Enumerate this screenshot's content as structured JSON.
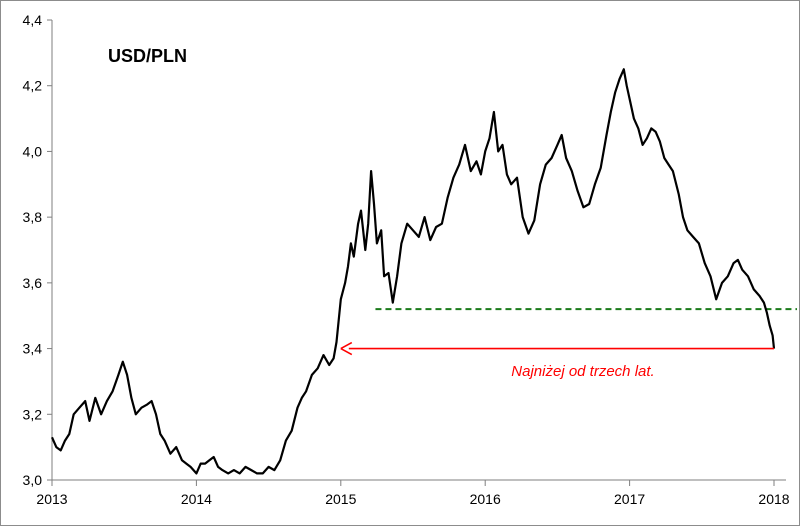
{
  "chart_data": {
    "type": "line",
    "title": "USD/PLN",
    "xlabel": "",
    "ylabel": "",
    "xlim": [
      2013.0,
      2018.0
    ],
    "ylim": [
      3.0,
      4.4
    ],
    "x_ticks": [
      2013,
      2014,
      2015,
      2016,
      2017,
      2018
    ],
    "x_tick_labels": [
      "2013",
      "2014",
      "2015",
      "2016",
      "2017",
      "2018"
    ],
    "y_ticks": [
      3.0,
      3.2,
      3.4,
      3.6,
      3.8,
      4.0,
      4.2,
      4.4
    ],
    "y_tick_labels": [
      "3,0",
      "3,2",
      "3,4",
      "3,6",
      "3,8",
      "4,0",
      "4,2",
      "4,4"
    ],
    "grid": false,
    "legend": "none",
    "series": [
      {
        "color": "#000000",
        "points": [
          [
            2013.0,
            3.13
          ],
          [
            2013.03,
            3.1
          ],
          [
            2013.06,
            3.09
          ],
          [
            2013.09,
            3.12
          ],
          [
            2013.12,
            3.14
          ],
          [
            2013.15,
            3.2
          ],
          [
            2013.19,
            3.22
          ],
          [
            2013.23,
            3.24
          ],
          [
            2013.26,
            3.18
          ],
          [
            2013.3,
            3.25
          ],
          [
            2013.34,
            3.2
          ],
          [
            2013.38,
            3.24
          ],
          [
            2013.42,
            3.27
          ],
          [
            2013.46,
            3.32
          ],
          [
            2013.49,
            3.36
          ],
          [
            2013.52,
            3.32
          ],
          [
            2013.55,
            3.25
          ],
          [
            2013.58,
            3.2
          ],
          [
            2013.62,
            3.22
          ],
          [
            2013.66,
            3.23
          ],
          [
            2013.69,
            3.24
          ],
          [
            2013.72,
            3.2
          ],
          [
            2013.75,
            3.14
          ],
          [
            2013.78,
            3.12
          ],
          [
            2013.82,
            3.08
          ],
          [
            2013.86,
            3.1
          ],
          [
            2013.9,
            3.06
          ],
          [
            2013.93,
            3.05
          ],
          [
            2013.96,
            3.04
          ],
          [
            2014.0,
            3.02
          ],
          [
            2014.03,
            3.05
          ],
          [
            2014.06,
            3.05
          ],
          [
            2014.09,
            3.06
          ],
          [
            2014.12,
            3.07
          ],
          [
            2014.15,
            3.04
          ],
          [
            2014.18,
            3.03
          ],
          [
            2014.22,
            3.02
          ],
          [
            2014.26,
            3.03
          ],
          [
            2014.3,
            3.02
          ],
          [
            2014.34,
            3.04
          ],
          [
            2014.38,
            3.03
          ],
          [
            2014.42,
            3.02
          ],
          [
            2014.46,
            3.02
          ],
          [
            2014.5,
            3.04
          ],
          [
            2014.54,
            3.03
          ],
          [
            2014.58,
            3.06
          ],
          [
            2014.62,
            3.12
          ],
          [
            2014.66,
            3.15
          ],
          [
            2014.7,
            3.22
          ],
          [
            2014.73,
            3.25
          ],
          [
            2014.76,
            3.27
          ],
          [
            2014.8,
            3.32
          ],
          [
            2014.84,
            3.34
          ],
          [
            2014.88,
            3.38
          ],
          [
            2014.92,
            3.35
          ],
          [
            2014.95,
            3.37
          ],
          [
            2014.97,
            3.42
          ],
          [
            2015.0,
            3.55
          ],
          [
            2015.03,
            3.6
          ],
          [
            2015.05,
            3.65
          ],
          [
            2015.07,
            3.72
          ],
          [
            2015.09,
            3.68
          ],
          [
            2015.12,
            3.78
          ],
          [
            2015.14,
            3.82
          ],
          [
            2015.17,
            3.7
          ],
          [
            2015.19,
            3.78
          ],
          [
            2015.21,
            3.94
          ],
          [
            2015.23,
            3.84
          ],
          [
            2015.25,
            3.72
          ],
          [
            2015.28,
            3.76
          ],
          [
            2015.3,
            3.62
          ],
          [
            2015.33,
            3.63
          ],
          [
            2015.36,
            3.54
          ],
          [
            2015.39,
            3.62
          ],
          [
            2015.42,
            3.72
          ],
          [
            2015.46,
            3.78
          ],
          [
            2015.5,
            3.76
          ],
          [
            2015.54,
            3.74
          ],
          [
            2015.58,
            3.8
          ],
          [
            2015.62,
            3.73
          ],
          [
            2015.66,
            3.77
          ],
          [
            2015.7,
            3.78
          ],
          [
            2015.74,
            3.86
          ],
          [
            2015.78,
            3.92
          ],
          [
            2015.82,
            3.96
          ],
          [
            2015.86,
            4.02
          ],
          [
            2015.9,
            3.94
          ],
          [
            2015.94,
            3.97
          ],
          [
            2015.97,
            3.93
          ],
          [
            2016.0,
            4.0
          ],
          [
            2016.03,
            4.04
          ],
          [
            2016.06,
            4.12
          ],
          [
            2016.09,
            4.0
          ],
          [
            2016.12,
            4.02
          ],
          [
            2016.15,
            3.93
          ],
          [
            2016.18,
            3.9
          ],
          [
            2016.22,
            3.92
          ],
          [
            2016.26,
            3.8
          ],
          [
            2016.3,
            3.75
          ],
          [
            2016.34,
            3.79
          ],
          [
            2016.38,
            3.9
          ],
          [
            2016.42,
            3.96
          ],
          [
            2016.46,
            3.98
          ],
          [
            2016.5,
            4.02
          ],
          [
            2016.53,
            4.05
          ],
          [
            2016.56,
            3.98
          ],
          [
            2016.6,
            3.94
          ],
          [
            2016.64,
            3.88
          ],
          [
            2016.68,
            3.83
          ],
          [
            2016.72,
            3.84
          ],
          [
            2016.76,
            3.9
          ],
          [
            2016.8,
            3.95
          ],
          [
            2016.84,
            4.05
          ],
          [
            2016.87,
            4.12
          ],
          [
            2016.9,
            4.18
          ],
          [
            2016.93,
            4.22
          ],
          [
            2016.96,
            4.25
          ],
          [
            2016.98,
            4.2
          ],
          [
            2017.0,
            4.16
          ],
          [
            2017.03,
            4.1
          ],
          [
            2017.06,
            4.07
          ],
          [
            2017.09,
            4.02
          ],
          [
            2017.12,
            4.04
          ],
          [
            2017.15,
            4.07
          ],
          [
            2017.18,
            4.06
          ],
          [
            2017.21,
            4.03
          ],
          [
            2017.24,
            3.98
          ],
          [
            2017.27,
            3.96
          ],
          [
            2017.3,
            3.94
          ],
          [
            2017.34,
            3.87
          ],
          [
            2017.37,
            3.8
          ],
          [
            2017.4,
            3.76
          ],
          [
            2017.44,
            3.74
          ],
          [
            2017.48,
            3.72
          ],
          [
            2017.52,
            3.66
          ],
          [
            2017.56,
            3.62
          ],
          [
            2017.6,
            3.55
          ],
          [
            2017.64,
            3.6
          ],
          [
            2017.68,
            3.62
          ],
          [
            2017.72,
            3.66
          ],
          [
            2017.75,
            3.67
          ],
          [
            2017.78,
            3.64
          ],
          [
            2017.82,
            3.62
          ],
          [
            2017.86,
            3.58
          ],
          [
            2017.9,
            3.56
          ],
          [
            2017.93,
            3.54
          ],
          [
            2017.95,
            3.51
          ],
          [
            2017.97,
            3.47
          ],
          [
            2017.99,
            3.44
          ],
          [
            2018.0,
            3.4
          ]
        ]
      }
    ],
    "reference_lines": [
      {
        "type": "hline",
        "y": 3.52,
        "x_from": 2015.24,
        "x_to": 2018.18,
        "color": "#1a7a1a",
        "style": "dashed"
      }
    ],
    "annotations": [
      {
        "text": "Najniżej od trzech lat.",
        "color": "#ff0000",
        "arrow_from": [
          2018.0,
          3.4
        ],
        "arrow_to": [
          2015.0,
          3.4
        ]
      }
    ]
  }
}
